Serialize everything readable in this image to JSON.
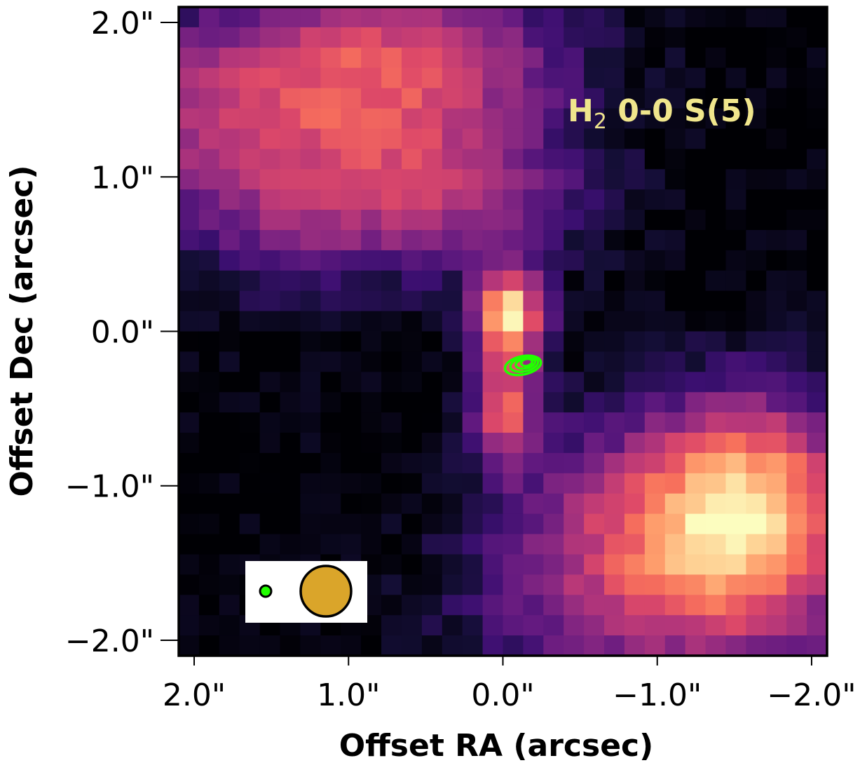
{
  "chart_data": {
    "type": "heatmap",
    "title": "",
    "annotation": {
      "species": "H",
      "subscript": "2",
      "transition": " 0-0 S(5)",
      "color": "#f0e68c"
    },
    "xlabel": "Offset RA (arcsec)",
    "ylabel": "Offset Dec (arcsec)",
    "xlim": [
      2.1,
      -2.1
    ],
    "ylim": [
      -2.1,
      2.1
    ],
    "x_ticks": [
      2.0,
      1.0,
      0.0,
      -1.0,
      -2.0
    ],
    "y_ticks": [
      2.0,
      1.0,
      0.0,
      -1.0,
      -2.0
    ],
    "x_tick_labels": [
      "2.0\"",
      "1.0\"",
      "0.0\"",
      "−1.0\"",
      "−2.0\""
    ],
    "y_tick_labels": [
      "2.0\"",
      "1.0\"",
      "0.0\"",
      "−1.0\"",
      "−2.0\""
    ],
    "colormap": "magma",
    "grid": false,
    "pixel_grid": {
      "nx": 32,
      "ny": 32
    },
    "emission_components": [
      {
        "name": "bright knot",
        "ra": -0.03,
        "dec": 0.1,
        "sigma": [
          0.16,
          0.2
        ],
        "amp": 1.0
      },
      {
        "name": "upper-left lobe",
        "ra": 1.6,
        "dec": 1.4,
        "sigma": [
          0.9,
          0.5
        ],
        "amp": 0.5
      },
      {
        "name": "top ridge",
        "ra": 0.5,
        "dec": 1.8,
        "sigma": [
          0.7,
          0.35
        ],
        "amp": 0.42
      },
      {
        "name": "arm to knot",
        "ra": 0.3,
        "dec": 0.9,
        "sigma": [
          0.6,
          0.35
        ],
        "amp": 0.38
      },
      {
        "name": "mid-left",
        "ra": 1.2,
        "dec": 0.6,
        "sigma": [
          0.5,
          0.35
        ],
        "amp": 0.28
      },
      {
        "name": "lower plume",
        "ra": 0.0,
        "dec": -0.5,
        "sigma": [
          0.15,
          0.25
        ],
        "amp": 0.72
      },
      {
        "name": "lower-right diagonal",
        "ra": -1.6,
        "dec": -1.1,
        "sigma": [
          0.5,
          0.5
        ],
        "amp": 0.62
      },
      {
        "name": "lower-right base",
        "ra": -1.0,
        "dec": -1.5,
        "sigma": [
          0.9,
          0.6
        ],
        "amp": 0.55
      }
    ],
    "contour": {
      "ra": -0.13,
      "dec": -0.22,
      "color": "#22ff00"
    },
    "beam_inset": {
      "small_beam_color": "#22ff00",
      "large_beam_color": "#daa52a"
    }
  }
}
